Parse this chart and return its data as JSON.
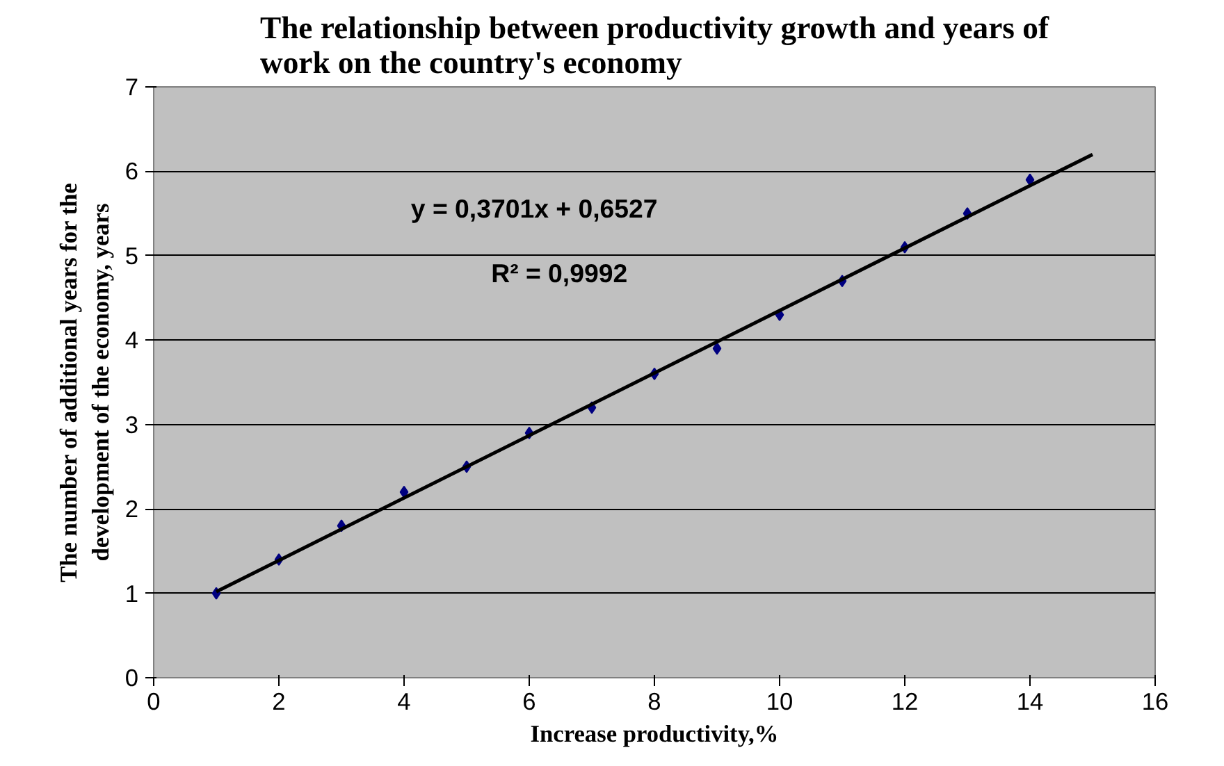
{
  "chart_data": {
    "type": "scatter",
    "title": "The relationship between productivity growth and years of work on the country's economy",
    "xlabel": "Increase productivity,%",
    "ylabel": "The number of additional years for the development of the economy, years",
    "x": [
      1,
      2,
      3,
      4,
      5,
      6,
      7,
      8,
      9,
      10,
      11,
      12,
      13,
      14
    ],
    "series": [
      {
        "color": "#000080",
        "marker": "diamond",
        "values": [
          1.0,
          1.4,
          1.8,
          2.2,
          2.5,
          2.9,
          3.2,
          3.6,
          3.9,
          4.3,
          4.7,
          5.1,
          5.5,
          5.9
        ]
      },
      {
        "type": "line",
        "color": "#000000",
        "line_style": "solid",
        "x": [
          1,
          15
        ],
        "values": [
          1.02,
          6.2
        ]
      }
    ],
    "annotations": [
      "y = 0,3701x + 0,6527",
      "R² = 0,9992"
    ],
    "xlim": [
      0,
      16
    ],
    "xticks": [
      0,
      2,
      4,
      6,
      8,
      10,
      12,
      14,
      16
    ],
    "ylim": [
      0,
      7
    ],
    "yticks": [
      0,
      1,
      2,
      3,
      4,
      5,
      6,
      7
    ],
    "grid": "y"
  }
}
